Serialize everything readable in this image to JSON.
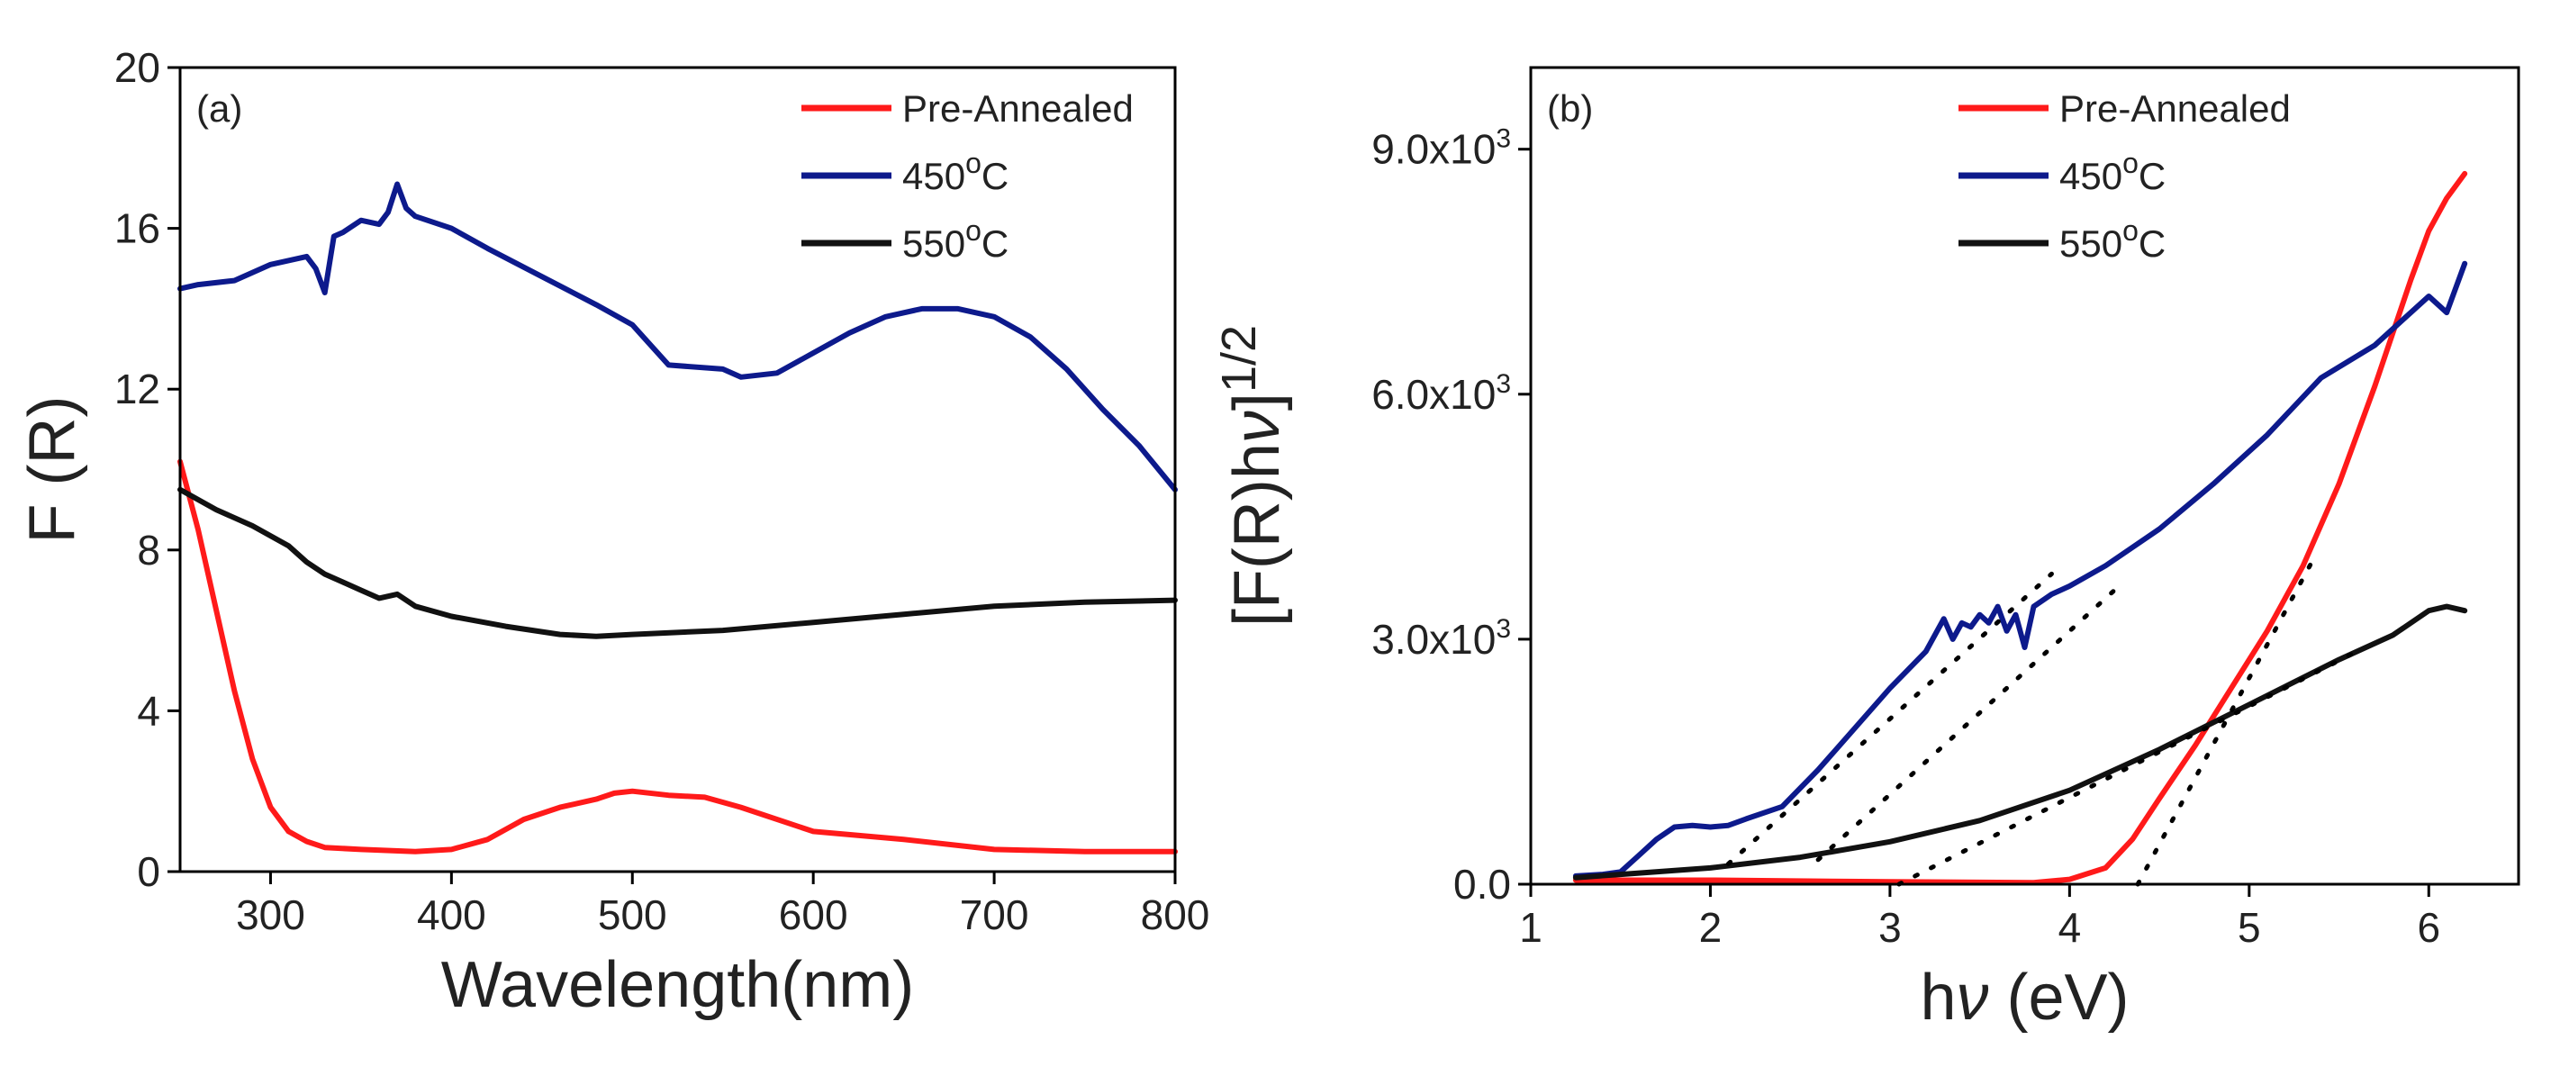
{
  "chart_data": [
    {
      "type": "line",
      "panel_label": "(a)",
      "xlabel": "Wavelength(nm)",
      "ylabel": "F (R)",
      "xlim": [
        250,
        800
      ],
      "ylim": [
        0,
        20
      ],
      "xticks": [
        300,
        400,
        500,
        600,
        700,
        800
      ],
      "yticks": [
        0,
        4,
        8,
        12,
        16,
        20
      ],
      "legend_position": "top-right",
      "series": [
        {
          "name": "Pre-Annealed",
          "legend": {
            "base": "Pre-Annealed",
            "sup": "",
            "tail": ""
          },
          "color": "#ff1a1a",
          "x": [
            250,
            260,
            270,
            280,
            290,
            300,
            310,
            320,
            330,
            350,
            380,
            400,
            420,
            440,
            460,
            480,
            490,
            500,
            520,
            540,
            560,
            600,
            650,
            700,
            750,
            800
          ],
          "y": [
            10.2,
            8.5,
            6.5,
            4.5,
            2.8,
            1.6,
            1.0,
            0.75,
            0.6,
            0.55,
            0.5,
            0.55,
            0.8,
            1.3,
            1.6,
            1.8,
            1.95,
            2.0,
            1.9,
            1.85,
            1.6,
            1.0,
            0.8,
            0.55,
            0.5,
            0.5
          ]
        },
        {
          "name": "450oC",
          "legend": {
            "base": "450",
            "sup": "o",
            "tail": "C"
          },
          "color": "#0d1a8c",
          "x": [
            250,
            260,
            280,
            300,
            320,
            325,
            330,
            335,
            340,
            350,
            360,
            365,
            370,
            375,
            380,
            400,
            420,
            450,
            480,
            500,
            520,
            550,
            560,
            580,
            600,
            620,
            640,
            660,
            680,
            700,
            720,
            740,
            760,
            780,
            800
          ],
          "y": [
            14.5,
            14.6,
            14.7,
            15.1,
            15.3,
            15.0,
            14.4,
            15.8,
            15.9,
            16.2,
            16.1,
            16.4,
            17.1,
            16.5,
            16.3,
            16.0,
            15.5,
            14.8,
            14.1,
            13.6,
            12.6,
            12.5,
            12.3,
            12.4,
            12.9,
            13.4,
            13.8,
            14.0,
            14.0,
            13.8,
            13.3,
            12.5,
            11.5,
            10.6,
            9.5
          ]
        },
        {
          "name": "550oC",
          "legend": {
            "base": "550",
            "sup": "o",
            "tail": "C"
          },
          "color": "#111111",
          "x": [
            250,
            270,
            290,
            310,
            320,
            330,
            340,
            350,
            360,
            370,
            380,
            400,
            430,
            460,
            480,
            500,
            550,
            600,
            650,
            700,
            750,
            800
          ],
          "y": [
            9.5,
            9.0,
            8.6,
            8.1,
            7.7,
            7.4,
            7.2,
            7.0,
            6.8,
            6.9,
            6.6,
            6.35,
            6.1,
            5.9,
            5.85,
            5.9,
            6.0,
            6.2,
            6.4,
            6.6,
            6.7,
            6.75
          ]
        }
      ]
    },
    {
      "type": "line",
      "panel_label": "(b)",
      "xlabel": "hν (eV)",
      "ylabel": "[F(R)hν]1/2",
      "xlim": [
        1,
        6.5
      ],
      "ylim": [
        0,
        10000
      ],
      "xticks": [
        1,
        2,
        3,
        4,
        5,
        6
      ],
      "yticks": [
        0,
        3000,
        6000,
        9000
      ],
      "ytick_labels": [
        {
          "base": "0.0",
          "sup": ""
        },
        {
          "base": "3.0x10",
          "sup": "3"
        },
        {
          "base": "6.0x10",
          "sup": "3"
        },
        {
          "base": "9.0x10",
          "sup": "3"
        }
      ],
      "legend_position": "top-right",
      "series": [
        {
          "name": "Pre-Annealed",
          "legend": {
            "base": "Pre-Annealed",
            "sup": "",
            "tail": ""
          },
          "color": "#ff1a1a",
          "x": [
            1.25,
            2.0,
            3.0,
            3.8,
            4.0,
            4.2,
            4.35,
            4.5,
            4.7,
            4.9,
            5.1,
            5.3,
            5.5,
            5.7,
            5.9,
            6.0,
            6.1,
            6.2
          ],
          "y": [
            50,
            50,
            30,
            20,
            60,
            200,
            550,
            1050,
            1700,
            2400,
            3100,
            3900,
            4900,
            6100,
            7400,
            8000,
            8400,
            8700
          ]
        },
        {
          "name": "450oC",
          "legend": {
            "base": "450",
            "sup": "o",
            "tail": "C"
          },
          "color": "#0d1a8c",
          "x": [
            1.25,
            1.4,
            1.5,
            1.6,
            1.7,
            1.8,
            1.9,
            2.0,
            2.1,
            2.2,
            2.4,
            2.6,
            2.8,
            3.0,
            3.2,
            3.3,
            3.35,
            3.4,
            3.45,
            3.5,
            3.55,
            3.6,
            3.65,
            3.7,
            3.75,
            3.8,
            3.9,
            4.0,
            4.2,
            4.5,
            4.8,
            5.1,
            5.4,
            5.7,
            5.9,
            6.0,
            6.1,
            6.2
          ],
          "y": [
            100,
            120,
            150,
            350,
            550,
            700,
            720,
            700,
            720,
            800,
            950,
            1400,
            1900,
            2400,
            2850,
            3250,
            3000,
            3200,
            3150,
            3300,
            3200,
            3400,
            3100,
            3300,
            2900,
            3400,
            3550,
            3650,
            3900,
            4350,
            4900,
            5500,
            6200,
            6600,
            7000,
            7200,
            7000,
            7600
          ]
        },
        {
          "name": "550oC",
          "legend": {
            "base": "550",
            "sup": "o",
            "tail": "C"
          },
          "color": "#111111",
          "x": [
            1.25,
            1.5,
            2.0,
            2.5,
            3.0,
            3.5,
            4.0,
            4.5,
            5.0,
            5.5,
            5.8,
            6.0,
            6.1,
            6.2
          ],
          "y": [
            80,
            120,
            200,
            330,
            520,
            780,
            1150,
            1650,
            2200,
            2750,
            3050,
            3350,
            3400,
            3350
          ]
        }
      ],
      "fit_lines": [
        {
          "series": "450oC",
          "x": [
            2.1,
            3.9
          ],
          "y": [
            250,
            3800
          ]
        },
        {
          "series": "450oC",
          "x": [
            2.6,
            4.3
          ],
          "y": [
            300,
            3700
          ]
        },
        {
          "series": "550oC",
          "x": [
            3.05,
            5.6
          ],
          "y": [
            0,
            2850
          ]
        },
        {
          "series": "Pre-Annealed",
          "x": [
            4.38,
            5.35
          ],
          "y": [
            0,
            3950
          ]
        }
      ]
    }
  ]
}
